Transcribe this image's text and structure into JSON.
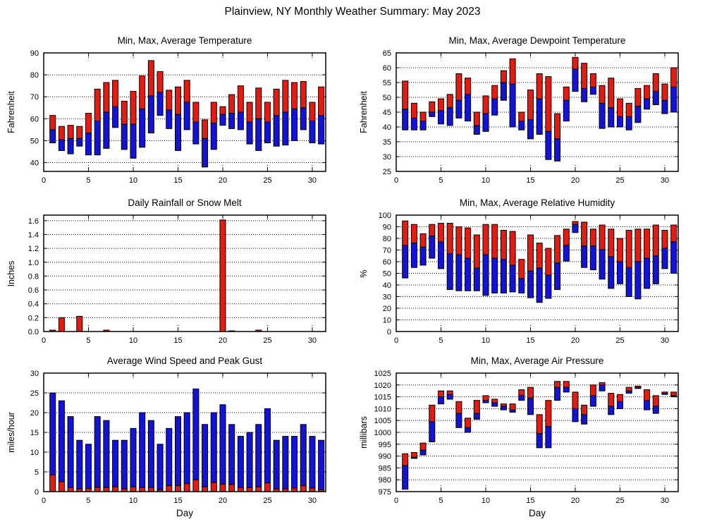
{
  "page_title": "Plainview, NY Monthly Weather Summary: May 2023",
  "colors": {
    "bar_blue": "#1312d8",
    "bar_red": "#e41b10",
    "axis": "#000000"
  },
  "days": [
    1,
    2,
    3,
    4,
    5,
    6,
    7,
    8,
    9,
    10,
    11,
    12,
    13,
    14,
    15,
    16,
    17,
    18,
    19,
    20,
    21,
    22,
    23,
    24,
    25,
    26,
    27,
    28,
    29,
    30,
    31
  ],
  "chart_data": [
    {
      "id": "temperature",
      "type": "range",
      "title": "Min, Max, Average Temperature",
      "ylabel": "Fahrenheit",
      "ylim": [
        36,
        90
      ],
      "ytick_step": 10,
      "decimals": 0,
      "xticks": [
        0,
        5,
        10,
        15,
        20,
        25,
        30
      ],
      "series": [
        {
          "name": "min",
          "values": [
            49,
            45.5,
            44,
            47.5,
            43.5,
            43.5,
            46.5,
            56,
            46,
            42,
            47,
            53.5,
            61.5,
            55.5,
            45.5,
            55,
            48.5,
            38,
            46,
            57,
            55.5,
            55,
            48.5,
            45.5,
            49,
            47.5,
            48,
            50,
            55,
            49,
            48.5
          ]
        },
        {
          "name": "average",
          "values": [
            55,
            50.5,
            51,
            51,
            53.5,
            59,
            63,
            65.5,
            57.5,
            57.5,
            64.5,
            70.5,
            72,
            64,
            62,
            67.5,
            58.5,
            51,
            58,
            62,
            62.5,
            63,
            58.5,
            60,
            58.5,
            61.5,
            63,
            64.5,
            65,
            59,
            61.5
          ]
        },
        {
          "name": "max",
          "values": [
            61.5,
            56.5,
            57,
            56.5,
            62.5,
            73.5,
            76.5,
            77.5,
            68,
            72.5,
            79.5,
            86.5,
            81.5,
            73,
            74.5,
            77.5,
            67.5,
            59.5,
            67.5,
            65.5,
            71,
            75,
            67.5,
            74,
            67.5,
            73.5,
            77.5,
            76.5,
            77,
            67.5,
            74.5
          ]
        }
      ]
    },
    {
      "id": "dewpoint",
      "type": "range",
      "title": "Min, Max, Average Dewpoint Temperature",
      "ylabel": "Fahrenheit",
      "ylim": [
        25,
        65
      ],
      "ytick_step": 5,
      "decimals": 0,
      "xticks": [
        0,
        5,
        10,
        15,
        20,
        25,
        30
      ],
      "series": [
        {
          "name": "min",
          "values": [
            39,
            39,
            39,
            43.5,
            41,
            40.5,
            43,
            42,
            37.5,
            38.5,
            44,
            49,
            40,
            39,
            36,
            37.5,
            29,
            28.5,
            42,
            52,
            48.5,
            51,
            39.5,
            40,
            40,
            39,
            41.5,
            46,
            47.5,
            44.5,
            45
          ]
        },
        {
          "name": "average",
          "values": [
            46,
            43,
            42,
            45,
            45.5,
            46.5,
            49,
            51,
            40.5,
            44.5,
            49.5,
            55,
            54.5,
            42,
            42.5,
            49.5,
            38.5,
            36,
            49,
            59.5,
            53,
            53.5,
            48,
            46.5,
            43.5,
            43.5,
            47,
            49.5,
            52,
            49,
            53.5
          ]
        },
        {
          "name": "max",
          "values": [
            55.5,
            48,
            45,
            48.5,
            49.5,
            51,
            58,
            56.5,
            45,
            50.5,
            54,
            59,
            63,
            45,
            52.5,
            58,
            57,
            44.5,
            53.5,
            63.5,
            61.5,
            58,
            54,
            56.5,
            49.5,
            48,
            53,
            54,
            58,
            54.5,
            60
          ]
        }
      ]
    },
    {
      "id": "rainfall",
      "type": "bar",
      "title": "Daily Rainfall or Snow Melt",
      "ylabel": "Inches",
      "ylim": [
        0,
        1.68
      ],
      "ytick_step": 0.2,
      "decimals": 1,
      "xticks": [
        0,
        5,
        10,
        15,
        20,
        25,
        30
      ],
      "values": [
        0.02,
        0.2,
        0,
        0.22,
        0,
        0,
        0.02,
        0,
        0,
        0,
        0,
        0,
        0,
        0,
        0,
        0,
        0,
        0,
        0,
        1.61,
        0.01,
        0,
        0,
        0.02,
        0,
        0,
        0,
        0,
        0,
        0,
        0
      ]
    },
    {
      "id": "humidity",
      "type": "range",
      "title": "Min, Max, Average Relative Humidity",
      "ylabel": "%",
      "ylim": [
        0,
        100
      ],
      "ytick_step": 10,
      "decimals": 0,
      "xticks": [
        0,
        5,
        10,
        15,
        20,
        25,
        30
      ],
      "series": [
        {
          "name": "min",
          "values": [
            46,
            55,
            57,
            63,
            54,
            36,
            35,
            35,
            35,
            31,
            33,
            33,
            34,
            33,
            29,
            25,
            28.5,
            36,
            60.5,
            85,
            55,
            53,
            45,
            37,
            41,
            30,
            28,
            37,
            41,
            54,
            50
          ]
        },
        {
          "name": "average",
          "values": [
            74,
            76,
            72.5,
            82,
            77,
            67,
            66,
            63,
            54.5,
            66,
            63,
            62,
            57,
            45.5,
            52,
            54.5,
            48.5,
            59,
            74,
            92,
            73.5,
            73.5,
            70.5,
            64.5,
            60,
            55,
            60,
            63,
            65,
            71.5,
            77
          ]
        },
        {
          "name": "max",
          "values": [
            95,
            92,
            84,
            92,
            93,
            93,
            90,
            89,
            83,
            92,
            92,
            87,
            86,
            62,
            83,
            76,
            71.5,
            82.5,
            88,
            94.5,
            94,
            88,
            91.5,
            88,
            80,
            87,
            88,
            88,
            91.5,
            87,
            91.5
          ]
        }
      ]
    },
    {
      "id": "wind",
      "type": "stacked",
      "title": "Average Wind Speed and Peak Gust",
      "ylabel": "miles/hour",
      "xlabel": "Day",
      "ylim": [
        0,
        30
      ],
      "ytick_step": 5,
      "decimals": 0,
      "xticks": [
        0,
        5,
        10,
        15,
        20,
        25,
        30
      ],
      "series": [
        {
          "name": "average wind speed",
          "values": [
            4.2,
            2.5,
            1,
            0.7,
            0.8,
            1.1,
            1,
            1.2,
            0.7,
            1.2,
            1,
            1,
            0.5,
            1.5,
            1.5,
            2,
            3,
            1.2,
            2.3,
            1.9,
            1.8,
            1,
            1,
            1.2,
            2.2,
            0.7,
            0.7,
            0.9,
            1.5,
            0.9,
            0.5
          ]
        },
        {
          "name": "peak gust",
          "values": [
            25,
            23,
            19,
            13,
            12,
            19,
            18,
            13,
            13,
            16,
            20,
            18,
            12,
            16,
            19,
            20,
            26,
            17,
            20,
            22,
            17,
            14,
            15,
            17,
            21,
            13,
            14,
            14,
            17,
            14,
            13
          ]
        }
      ]
    },
    {
      "id": "pressure",
      "type": "range",
      "title": "Min, Max, Average Air Pressure",
      "ylabel": "millibars",
      "xlabel": "Day",
      "ylim": [
        975,
        1025
      ],
      "ytick_step": 5,
      "decimals": 0,
      "xticks": [
        0,
        5,
        10,
        15,
        20,
        25,
        30
      ],
      "series": [
        {
          "name": "min",
          "values": [
            976,
            989,
            990.5,
            996,
            1012,
            1014,
            1002,
            1000,
            1005.5,
            1012.5,
            1011,
            1009.5,
            1008.5,
            1013.5,
            1007.5,
            993.5,
            993.5,
            1013.5,
            1017,
            1004.5,
            1003.5,
            1011,
            1017.5,
            1007.5,
            1010,
            1016.5,
            1018.5,
            1009.5,
            1008,
            1016,
            1015
          ]
        },
        {
          "name": "average",
          "values": [
            986,
            989.5,
            992.5,
            1004.5,
            1015,
            1016,
            1008,
            1002,
            1008,
            1013.5,
            1012.5,
            1011,
            1009.5,
            1015.5,
            1014.5,
            999.5,
            1002.5,
            1019,
            1019,
            1010,
            1007.5,
            1015.5,
            1020,
            1011,
            1013,
            1017.5,
            1019,
            1013.5,
            1011,
            1016.5,
            1015.5
          ]
        },
        {
          "name": "max",
          "values": [
            991,
            991.5,
            995.5,
            1011.5,
            1017.5,
            1017.5,
            1013,
            1006,
            1013.5,
            1015.5,
            1014,
            1012,
            1012,
            1018,
            1019,
            1007.5,
            1013.5,
            1021.5,
            1021.5,
            1017,
            1011.5,
            1020,
            1021,
            1016.5,
            1016,
            1019,
            1019.5,
            1018,
            1015.5,
            1017,
            1017
          ]
        }
      ]
    }
  ]
}
